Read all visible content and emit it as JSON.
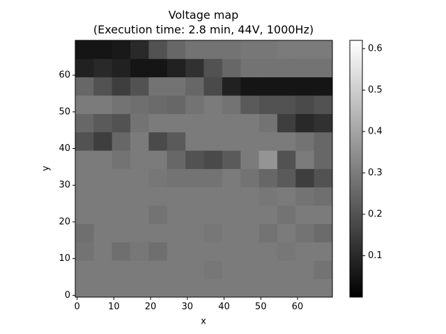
{
  "chart_data": {
    "type": "heatmap",
    "title": "Voltage map\n(Execution time: 2.8 min, 44V, 1000Hz)",
    "xlabel": "x",
    "ylabel": "y",
    "colormap": "gray",
    "xlim": [
      -0.5,
      69.5
    ],
    "ylim": [
      -0.5,
      69.5
    ],
    "xticks": [
      0,
      10,
      20,
      30,
      40,
      50,
      60
    ],
    "yticks": [
      0,
      10,
      20,
      30,
      40,
      50,
      60
    ],
    "xbins": [
      -0.5,
      4.5,
      9.5,
      14.5,
      19.5,
      24.5,
      29.5,
      34.5,
      39.5,
      44.5,
      49.5,
      54.5,
      59.5,
      64.5,
      69.5
    ],
    "ybins": [
      -0.5,
      4.5,
      9.5,
      14.5,
      19.5,
      24.5,
      29.5,
      34.5,
      39.5,
      44.5,
      49.5,
      54.5,
      59.5,
      64.5,
      69.5
    ],
    "zlim": [
      0,
      0.62
    ],
    "zticks": [
      0.1,
      0.2,
      0.3,
      0.4,
      0.5,
      0.6
    ],
    "z": [
      [
        0.3,
        0.3,
        0.3,
        0.3,
        0.3,
        0.3,
        0.3,
        0.3,
        0.3,
        0.3,
        0.3,
        0.3,
        0.3,
        0.3
      ],
      [
        0.3,
        0.3,
        0.3,
        0.3,
        0.3,
        0.3,
        0.3,
        0.29,
        0.3,
        0.3,
        0.3,
        0.3,
        0.3,
        0.28
      ],
      [
        0.28,
        0.3,
        0.27,
        0.29,
        0.27,
        0.3,
        0.3,
        0.3,
        0.3,
        0.3,
        0.3,
        0.29,
        0.3,
        0.3
      ],
      [
        0.27,
        0.3,
        0.3,
        0.3,
        0.3,
        0.3,
        0.3,
        0.29,
        0.3,
        0.3,
        0.28,
        0.3,
        0.28,
        0.26
      ],
      [
        0.3,
        0.3,
        0.3,
        0.3,
        0.28,
        0.3,
        0.3,
        0.3,
        0.3,
        0.3,
        0.3,
        0.28,
        0.3,
        0.3
      ],
      [
        0.3,
        0.3,
        0.3,
        0.3,
        0.3,
        0.3,
        0.3,
        0.3,
        0.3,
        0.3,
        0.29,
        0.3,
        0.28,
        0.27
      ],
      [
        0.3,
        0.3,
        0.3,
        0.3,
        0.29,
        0.28,
        0.28,
        0.28,
        0.3,
        0.28,
        0.25,
        0.22,
        0.15,
        0.2
      ],
      [
        0.3,
        0.3,
        0.28,
        0.3,
        0.3,
        0.25,
        0.2,
        0.18,
        0.22,
        0.3,
        0.36,
        0.2,
        0.3,
        0.25
      ],
      [
        0.2,
        0.15,
        0.25,
        0.3,
        0.18,
        0.22,
        0.3,
        0.3,
        0.3,
        0.3,
        0.3,
        0.3,
        0.28,
        0.25
      ],
      [
        0.25,
        0.22,
        0.2,
        0.28,
        0.3,
        0.3,
        0.3,
        0.3,
        0.3,
        0.3,
        0.28,
        0.15,
        0.1,
        0.12
      ],
      [
        0.3,
        0.3,
        0.28,
        0.27,
        0.26,
        0.25,
        0.28,
        0.3,
        0.28,
        0.22,
        0.2,
        0.2,
        0.18,
        0.2
      ],
      [
        0.25,
        0.2,
        0.15,
        0.2,
        0.28,
        0.28,
        0.25,
        0.18,
        0.08,
        0.05,
        0.05,
        0.05,
        0.05,
        0.05
      ],
      [
        0.08,
        0.1,
        0.08,
        0.05,
        0.05,
        0.08,
        0.12,
        0.2,
        0.25,
        0.28,
        0.28,
        0.28,
        0.28,
        0.28
      ],
      [
        0.05,
        0.05,
        0.06,
        0.1,
        0.2,
        0.25,
        0.28,
        0.28,
        0.28,
        0.29,
        0.29,
        0.3,
        0.3,
        0.3
      ]
    ]
  }
}
